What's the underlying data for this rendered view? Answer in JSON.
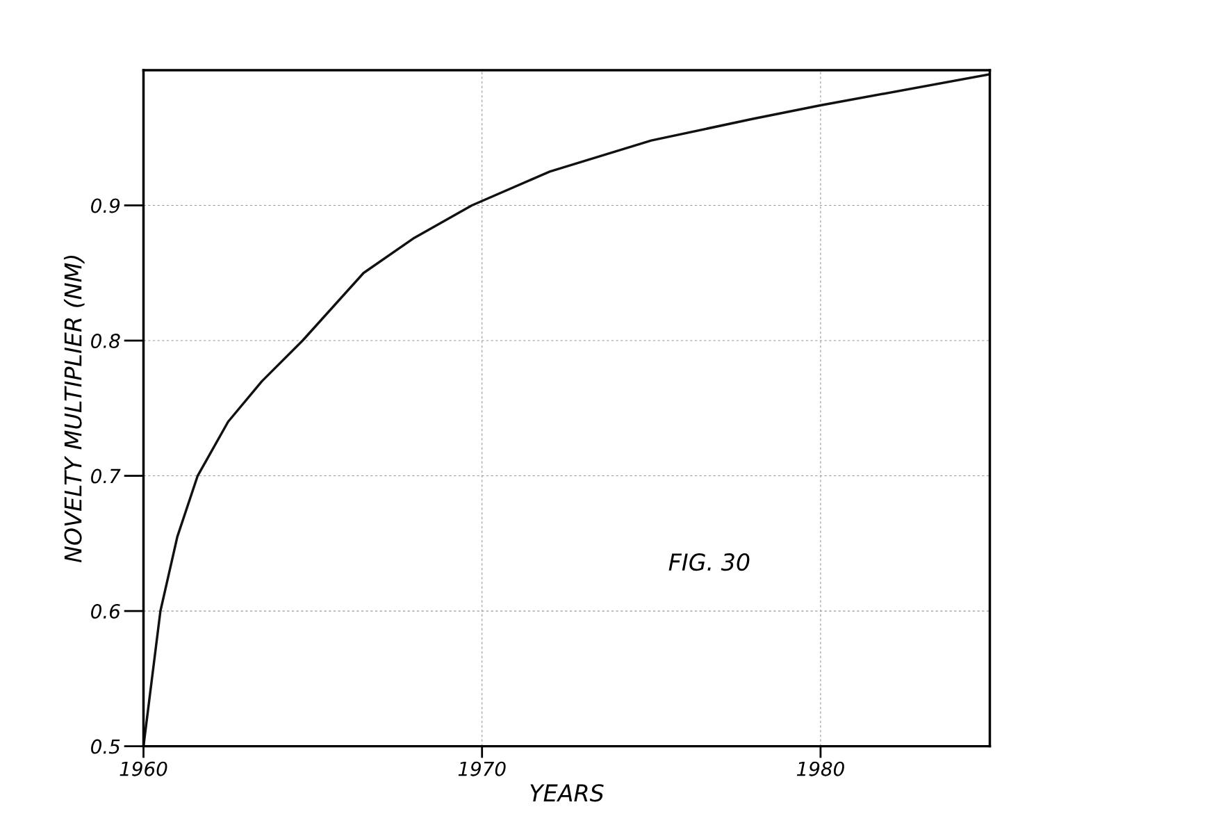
{
  "chart_data": {
    "type": "line",
    "xlabel": "YEARS",
    "ylabel": "NOVELTY MULTIPLIER (NM)",
    "annotations": [
      "FIG. 30"
    ],
    "series": [
      {
        "color": "#111111",
        "x": [
          1960,
          1960.5,
          1961,
          1961.6,
          1962.5,
          1963.5,
          1964.7,
          1966.5,
          1968,
          1969.7,
          1972,
          1975,
          1978,
          1980,
          1985
        ],
        "values": [
          0.5,
          0.6,
          0.655,
          0.7,
          0.74,
          0.77,
          0.8,
          0.85,
          0.876,
          0.9,
          0.925,
          0.948,
          0.964,
          0.974,
          0.997
        ]
      }
    ],
    "xlim": [
      1960,
      1985
    ],
    "xticks": [
      1960,
      1970,
      1980
    ],
    "ylim": [
      0.5,
      1.0
    ],
    "yticks": [
      0.5,
      0.6,
      0.7,
      0.8,
      0.9
    ],
    "grid": true,
    "legend": false,
    "marker": "none",
    "line_style": "solid"
  }
}
